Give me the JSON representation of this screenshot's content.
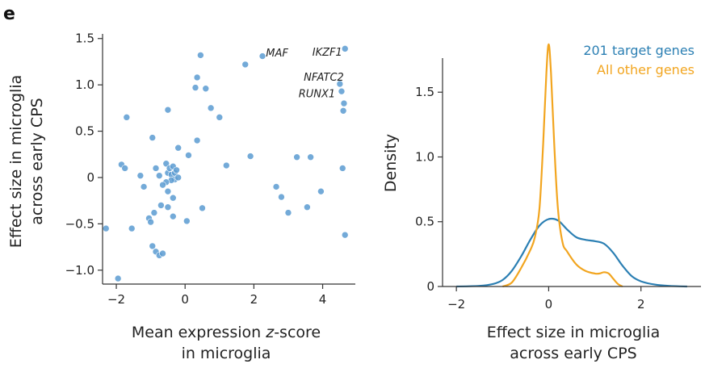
{
  "panel_label": "e",
  "chart_data": [
    {
      "type": "scatter",
      "xlabel_parts": [
        "Mean expression ",
        "z",
        "-score"
      ],
      "xlabel_line2": "in microglia",
      "ylabel_line1": "Effect size in microglia",
      "ylabel_line2": "across early CPS",
      "xlim": [
        -2.4,
        4.95
      ],
      "ylim": [
        -1.15,
        1.55
      ],
      "xticks": [
        -2,
        0,
        2,
        4
      ],
      "yticks": [
        -1.0,
        -0.5,
        0,
        0.5,
        1.0,
        1.5
      ],
      "ytick_labels": [
        "−1.0",
        "−0.5",
        "0",
        "0.5",
        "1.0",
        "1.5"
      ],
      "xtick_labels": [
        "−2",
        "0",
        "2",
        "4"
      ],
      "point_color": "#5b9bd1",
      "points": [
        {
          "x": 4.65,
          "y": 1.39
        },
        {
          "x": 2.25,
          "y": 1.31
        },
        {
          "x": 4.5,
          "y": 1.01
        },
        {
          "x": 4.55,
          "y": 0.93
        },
        {
          "x": 4.62,
          "y": 0.8
        },
        {
          "x": 4.6,
          "y": 0.72
        },
        {
          "x": 4.58,
          "y": 0.1
        },
        {
          "x": 4.65,
          "y": -0.62
        },
        {
          "x": 0.45,
          "y": 1.32
        },
        {
          "x": 1.75,
          "y": 1.22
        },
        {
          "x": 0.35,
          "y": 1.08
        },
        {
          "x": 0.3,
          "y": 0.97
        },
        {
          "x": 0.6,
          "y": 0.96
        },
        {
          "x": 0.75,
          "y": 0.75
        },
        {
          "x": 1.0,
          "y": 0.65
        },
        {
          "x": -0.5,
          "y": 0.73
        },
        {
          "x": -1.7,
          "y": 0.65
        },
        {
          "x": -0.95,
          "y": 0.43
        },
        {
          "x": -0.2,
          "y": 0.32
        },
        {
          "x": 0.35,
          "y": 0.4
        },
        {
          "x": 0.1,
          "y": 0.24
        },
        {
          "x": 1.9,
          "y": 0.23
        },
        {
          "x": 1.2,
          "y": 0.13
        },
        {
          "x": 3.25,
          "y": 0.22
        },
        {
          "x": 3.65,
          "y": 0.22
        },
        {
          "x": -1.85,
          "y": 0.14
        },
        {
          "x": -1.75,
          "y": 0.1
        },
        {
          "x": -1.3,
          "y": 0.02
        },
        {
          "x": -0.85,
          "y": 0.1
        },
        {
          "x": -0.75,
          "y": 0.02
        },
        {
          "x": -0.55,
          "y": 0.15
        },
        {
          "x": -0.5,
          "y": 0.05
        },
        {
          "x": -0.45,
          "y": 0.1
        },
        {
          "x": -0.4,
          "y": 0.03
        },
        {
          "x": -0.35,
          "y": 0.12
        },
        {
          "x": -0.3,
          "y": 0.05
        },
        {
          "x": -0.3,
          "y": -0.02
        },
        {
          "x": -0.25,
          "y": 0.08
        },
        {
          "x": -0.2,
          "y": 0.0
        },
        {
          "x": -0.4,
          "y": -0.03
        },
        {
          "x": -0.55,
          "y": -0.05
        },
        {
          "x": -0.65,
          "y": -0.08
        },
        {
          "x": -0.5,
          "y": -0.15
        },
        {
          "x": -0.35,
          "y": -0.22
        },
        {
          "x": -0.7,
          "y": -0.3
        },
        {
          "x": -0.9,
          "y": -0.38
        },
        {
          "x": -0.5,
          "y": -0.32
        },
        {
          "x": -0.35,
          "y": -0.42
        },
        {
          "x": -1.05,
          "y": -0.44
        },
        {
          "x": -1.0,
          "y": -0.48
        },
        {
          "x": -1.2,
          "y": -0.1
        },
        {
          "x": 0.05,
          "y": -0.47
        },
        {
          "x": 0.5,
          "y": -0.33
        },
        {
          "x": -1.55,
          "y": -0.55
        },
        {
          "x": -2.3,
          "y": -0.55
        },
        {
          "x": -0.95,
          "y": -0.74
        },
        {
          "x": -0.85,
          "y": -0.8
        },
        {
          "x": -0.75,
          "y": -0.84
        },
        {
          "x": -0.65,
          "y": -0.82
        },
        {
          "x": -1.95,
          "y": -1.09
        },
        {
          "x": 2.65,
          "y": -0.1
        },
        {
          "x": 2.8,
          "y": -0.21
        },
        {
          "x": 3.0,
          "y": -0.38
        },
        {
          "x": 3.55,
          "y": -0.32
        },
        {
          "x": 3.95,
          "y": -0.15
        }
      ],
      "annotations": [
        {
          "text": "MAF",
          "x": 2.35,
          "y": 1.34
        },
        {
          "text": "IKZF1",
          "x": 3.7,
          "y": 1.35
        },
        {
          "text": "NFATC2",
          "x": 3.45,
          "y": 1.08
        },
        {
          "text": "RUNX1",
          "x": 3.3,
          "y": 0.9
        }
      ]
    },
    {
      "type": "line",
      "xlabel_line1": "Effect size in microglia",
      "xlabel_line2": "across early CPS",
      "ylabel": "Density",
      "xlim": [
        -2.3,
        3.3
      ],
      "ylim": [
        0,
        1.95
      ],
      "xticks": [
        -2,
        0,
        2
      ],
      "xtick_labels": [
        "−2",
        "0",
        "2"
      ],
      "yticks": [
        0,
        0.5,
        1.0,
        1.5
      ],
      "ytick_labels": [
        "0",
        "0.5",
        "1.0",
        "1.5"
      ],
      "legend_position": "top-right",
      "series": [
        {
          "name": "201 target genes",
          "color": "#2b7fb3",
          "x": [
            -2.0,
            -1.5,
            -1.2,
            -1.0,
            -0.8,
            -0.6,
            -0.4,
            -0.2,
            0.0,
            0.2,
            0.4,
            0.6,
            0.8,
            1.0,
            1.2,
            1.4,
            1.6,
            1.8,
            2.0,
            2.3,
            2.6,
            3.0
          ],
          "y": [
            0.0,
            0.005,
            0.02,
            0.05,
            0.12,
            0.23,
            0.36,
            0.47,
            0.52,
            0.51,
            0.44,
            0.38,
            0.36,
            0.35,
            0.33,
            0.26,
            0.16,
            0.08,
            0.04,
            0.015,
            0.005,
            0.0
          ]
        },
        {
          "name": "All other genes",
          "color": "#f2a51f",
          "x": [
            -1.0,
            -0.8,
            -0.6,
            -0.4,
            -0.3,
            -0.2,
            -0.12,
            -0.05,
            0.0,
            0.05,
            0.12,
            0.2,
            0.3,
            0.4,
            0.6,
            0.8,
            1.0,
            1.1,
            1.2,
            1.3,
            1.4,
            1.5,
            1.6
          ],
          "y": [
            0.0,
            0.03,
            0.14,
            0.28,
            0.38,
            0.6,
            1.1,
            1.65,
            1.87,
            1.65,
            1.1,
            0.6,
            0.34,
            0.27,
            0.17,
            0.12,
            0.1,
            0.1,
            0.11,
            0.1,
            0.06,
            0.02,
            0.0
          ]
        }
      ]
    }
  ]
}
